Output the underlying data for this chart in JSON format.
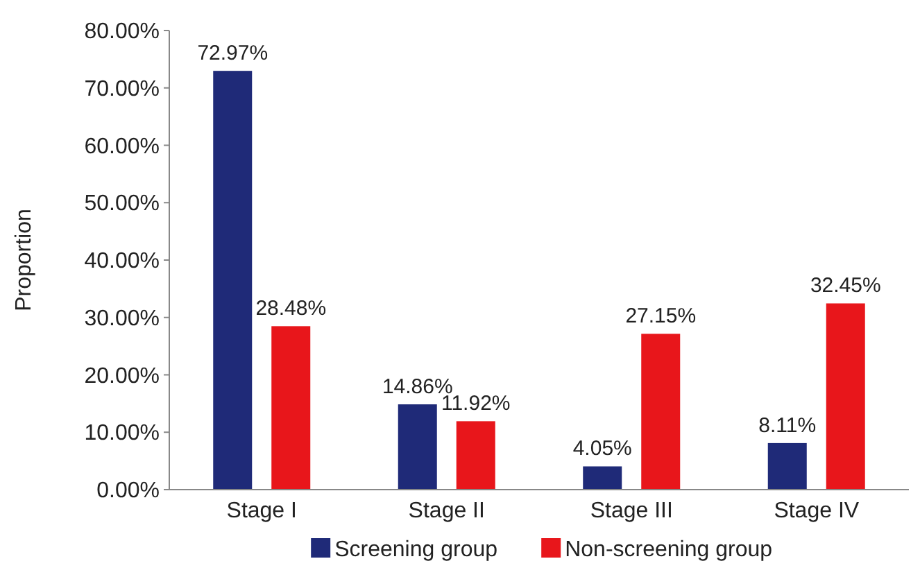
{
  "chart_data": {
    "type": "bar",
    "ylabel": "Proportion",
    "categories": [
      "Stage I",
      "Stage II",
      "Stage III",
      "Stage IV"
    ],
    "series": [
      {
        "name": "Screening group",
        "color": "#1f2a78",
        "values": [
          72.97,
          14.86,
          4.05,
          8.11
        ],
        "value_labels": [
          "72.97%",
          "14.86%",
          "4.05%",
          "8.11%"
        ]
      },
      {
        "name": "Non-screening group",
        "color": "#e8161b",
        "values": [
          28.48,
          11.92,
          27.15,
          32.45
        ],
        "value_labels": [
          "28.48%",
          "11.92%",
          "27.15%",
          "32.45%"
        ]
      }
    ],
    "ylim": [
      0,
      80
    ],
    "yticks": [
      {
        "value": 0,
        "label": "0.00%"
      },
      {
        "value": 10,
        "label": "10.00%"
      },
      {
        "value": 20,
        "label": "20.00%"
      },
      {
        "value": 30,
        "label": "30.00%"
      },
      {
        "value": 40,
        "label": "40.00%"
      },
      {
        "value": 50,
        "label": "50.00%"
      },
      {
        "value": 60,
        "label": "60.00%"
      },
      {
        "value": 70,
        "label": "70.00%"
      },
      {
        "value": 80,
        "label": "80.00%"
      }
    ],
    "legend": "bottom",
    "grid": false
  }
}
